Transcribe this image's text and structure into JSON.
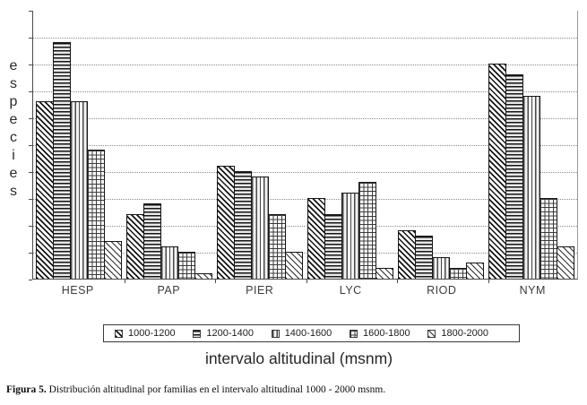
{
  "figure": {
    "y_axis_label_vertical": "especies",
    "x_axis_title": "intervalo altitudinal (msnm)",
    "caption_label": "Figura 5.",
    "caption_text": " Distribución altitudinal por familias en el intervalo altitudinal 1000 - 2000 msnm."
  },
  "colors": {
    "hatch": "#151515",
    "gridline": "#8a8a8a",
    "axis": "#4b4b4b",
    "text": "#262626"
  },
  "chart_data": {
    "type": "bar",
    "title": "",
    "xlabel": "intervalo altitudinal (msnm)",
    "ylabel": "especies",
    "categories": [
      "HESP",
      "PAP",
      "PIER",
      "LYC",
      "RIOD",
      "NYM"
    ],
    "series": [
      {
        "name": "1000-1200",
        "pattern": "diagonal-hatch",
        "values": [
          33,
          12,
          21,
          15,
          9,
          40
        ]
      },
      {
        "name": "1200-1400",
        "pattern": "horizontal-lines",
        "values": [
          44,
          14,
          20,
          12,
          8,
          38
        ]
      },
      {
        "name": "1400-1600",
        "pattern": "vertical-lines",
        "values": [
          33,
          6,
          19,
          16,
          4,
          34
        ]
      },
      {
        "name": "1600-1800",
        "pattern": "grid-crosshatch",
        "values": [
          24,
          5,
          12,
          18,
          2,
          15
        ]
      },
      {
        "name": "1800-2000",
        "pattern": "light-diagonal-hatch",
        "values": [
          7,
          1,
          5,
          2,
          3,
          6
        ]
      }
    ],
    "ylim": [
      0,
      50
    ],
    "gridline_step": 5,
    "y_tick_step": 5,
    "y_tick_labels_visible": false,
    "grid": "horizontal-dotted",
    "legend_position": "bottom"
  }
}
